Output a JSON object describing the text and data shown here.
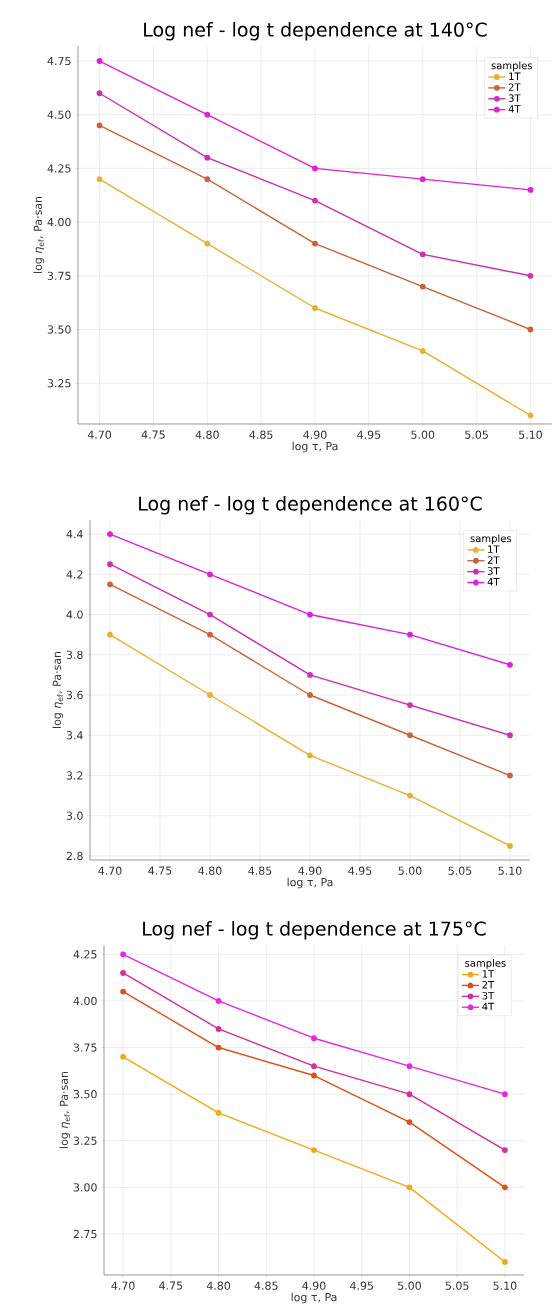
{
  "chart_data": [
    {
      "type": "line",
      "title": "Log nef - log t dependence at 140°C",
      "xlabel": "log τ, Pa",
      "ylabel": "log *η*$_{ef}$, Pa·san",
      "legend_title": "samples",
      "legend": "top right",
      "grid": true,
      "marker": "circle",
      "line_style": "solid",
      "x": [
        4.7,
        4.8,
        4.9,
        5.0,
        5.1
      ],
      "xlim": [
        4.68,
        5.12
      ],
      "ylim": [
        3.06,
        4.82
      ],
      "xticks": [
        {
          "value": 4.7,
          "label": "4.70"
        },
        4.75,
        {
          "value": 4.8,
          "label": "4.80"
        },
        4.85,
        {
          "value": 4.9,
          "label": "4.90"
        },
        4.95,
        {
          "value": 5.0,
          "label": "5.00"
        },
        5.05,
        {
          "value": 5.1,
          "label": "5.10"
        }
      ],
      "yticks": [
        3.25,
        {
          "value": 3.5,
          "label": "3.50"
        },
        3.75,
        {
          "value": 4.0,
          "label": "4.00"
        },
        4.25,
        {
          "value": 4.5,
          "label": "4.50"
        },
        4.75
      ],
      "series": [
        {
          "name": "1T",
          "color": "#e8b030",
          "values": [
            4.2,
            3.9,
            3.6,
            3.4,
            3.1
          ]
        },
        {
          "name": "2T",
          "color": "#c8643c",
          "values": [
            4.45,
            4.2,
            3.9,
            3.7,
            3.5
          ]
        },
        {
          "name": "3T",
          "color": "#cc30b4",
          "values": [
            4.6,
            4.3,
            4.1,
            3.85,
            3.75
          ]
        },
        {
          "name": "4T",
          "color": "#e020d8",
          "values": [
            4.75,
            4.5,
            4.25,
            4.2,
            4.15
          ]
        }
      ]
    },
    {
      "type": "line",
      "title": "Log nef - log t dependence at 160°C",
      "xlabel": "log τ, Pa",
      "ylabel": "log *η*$_{ef}$, Pa·san",
      "legend_title": "samples",
      "legend": "top right",
      "grid": true,
      "marker": "circle",
      "line_style": "solid",
      "x": [
        4.7,
        4.8,
        4.9,
        5.0,
        5.1
      ],
      "xlim": [
        4.68,
        5.12
      ],
      "ylim": [
        2.78,
        4.47
      ],
      "xticks": [
        {
          "value": 4.7,
          "label": "4.70"
        },
        4.75,
        {
          "value": 4.8,
          "label": "4.80"
        },
        4.85,
        {
          "value": 4.9,
          "label": "4.90"
        },
        4.95,
        {
          "value": 5.0,
          "label": "5.00"
        },
        5.05,
        {
          "value": 5.1,
          "label": "5.10"
        }
      ],
      "yticks": [
        2.8,
        {
          "value": 3.0,
          "label": "3.0"
        },
        3.2,
        3.4,
        3.6,
        3.8,
        {
          "value": 4.0,
          "label": "4.0"
        },
        4.2,
        4.4
      ],
      "series": [
        {
          "name": "1T",
          "color": "#e8b030",
          "values": [
            3.9,
            3.6,
            3.3,
            3.1,
            2.85
          ]
        },
        {
          "name": "2T",
          "color": "#c8643c",
          "values": [
            4.15,
            3.9,
            3.6,
            3.4,
            3.2
          ]
        },
        {
          "name": "3T",
          "color": "#cc30b4",
          "values": [
            4.25,
            4.0,
            3.7,
            3.55,
            3.4
          ]
        },
        {
          "name": "4T",
          "color": "#e020d8",
          "values": [
            4.4,
            4.2,
            4.0,
            3.9,
            3.75
          ]
        }
      ]
    },
    {
      "type": "line",
      "title": "Log nef - log t dependence at 175°C",
      "xlabel": "log τ, Pa",
      "ylabel": "log *η*$_{ef}$, Pa·san",
      "legend_title": "samples",
      "legend": "top right",
      "grid": true,
      "marker": "circle",
      "line_style": "solid",
      "x": [
        4.7,
        4.8,
        4.9,
        5.0,
        5.1
      ],
      "xlim": [
        4.68,
        5.12
      ],
      "ylim": [
        2.53,
        4.3
      ],
      "xticks": [
        {
          "value": 4.7,
          "label": "4.70"
        },
        4.75,
        {
          "value": 4.8,
          "label": "4.80"
        },
        4.85,
        {
          "value": 4.9,
          "label": "4.90"
        },
        4.95,
        {
          "value": 5.0,
          "label": "5.00"
        },
        5.05,
        {
          "value": 5.1,
          "label": "5.10"
        }
      ],
      "yticks": [
        2.75,
        {
          "value": 3.0,
          "label": "3.00"
        },
        3.25,
        {
          "value": 3.5,
          "label": "3.50"
        },
        3.75,
        {
          "value": 4.0,
          "label": "4.00"
        },
        4.25
      ],
      "series": [
        {
          "name": "1T",
          "color": "#f0a818",
          "values": [
            3.7,
            3.4,
            3.2,
            3.0,
            2.6
          ]
        },
        {
          "name": "2T",
          "color": "#e05018",
          "values": [
            4.05,
            3.75,
            3.6,
            3.35,
            3.0
          ]
        },
        {
          "name": "3T",
          "color": "#d82c9c",
          "values": [
            4.15,
            3.85,
            3.65,
            3.5,
            3.2
          ]
        },
        {
          "name": "4T",
          "color": "#e828e0",
          "values": [
            4.25,
            4.0,
            3.8,
            3.65,
            3.5
          ]
        }
      ]
    }
  ]
}
